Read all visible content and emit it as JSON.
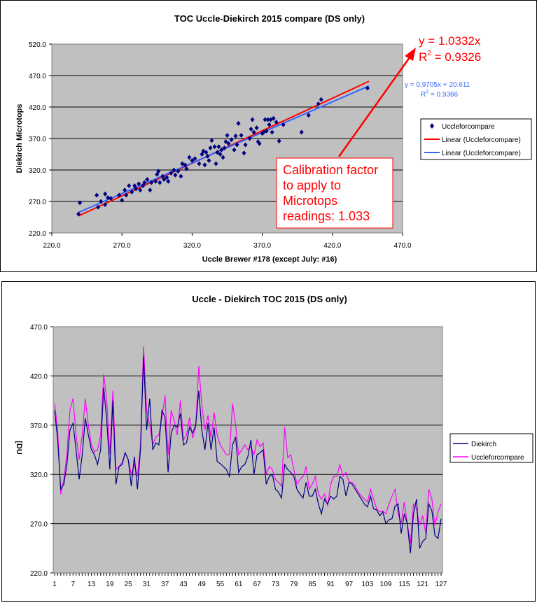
{
  "chart_data": [
    {
      "type": "scatter",
      "title": "TOC Uccle-Diekirch 2015 compare (DS only)",
      "xlabel": "Uccle Brewer #178 (except July: #16)",
      "ylabel": "Diekirch Microtops",
      "xlim": [
        220,
        470
      ],
      "ylim": [
        220,
        520
      ],
      "xticks": [
        "220.0",
        "270.0",
        "320.0",
        "370.0",
        "420.0",
        "470.0"
      ],
      "yticks": [
        "220.0",
        "270.0",
        "320.0",
        "370.0",
        "420.0",
        "470.0",
        "520.0"
      ],
      "grid": true,
      "legend": {
        "placement": "right",
        "entries": [
          "Uccleforcompare",
          "Linear (Uccleforcompare)",
          "Linear (Uccleforcompare)"
        ]
      },
      "series_name": "Uccleforcompare",
      "points": [
        [
          239,
          250
        ],
        [
          240,
          268
        ],
        [
          252,
          280
        ],
        [
          253,
          261
        ],
        [
          255,
          270
        ],
        [
          258,
          282
        ],
        [
          258,
          265
        ],
        [
          260,
          276
        ],
        [
          262,
          275
        ],
        [
          268,
          280
        ],
        [
          270,
          272
        ],
        [
          272,
          288
        ],
        [
          273,
          280
        ],
        [
          275,
          295
        ],
        [
          277,
          285
        ],
        [
          279,
          295
        ],
        [
          280,
          290
        ],
        [
          282,
          298
        ],
        [
          283,
          288
        ],
        [
          285,
          295
        ],
        [
          286,
          300
        ],
        [
          288,
          305
        ],
        [
          290,
          288
        ],
        [
          291,
          300
        ],
        [
          294,
          302
        ],
        [
          295,
          313
        ],
        [
          296,
          318
        ],
        [
          297,
          300
        ],
        [
          299,
          310
        ],
        [
          300,
          305
        ],
        [
          302,
          308
        ],
        [
          303,
          302
        ],
        [
          305,
          315
        ],
        [
          307,
          320
        ],
        [
          308,
          312
        ],
        [
          310,
          318
        ],
        [
          312,
          310
        ],
        [
          313,
          330
        ],
        [
          315,
          328
        ],
        [
          316,
          322
        ],
        [
          318,
          340
        ],
        [
          320,
          335
        ],
        [
          322,
          338
        ],
        [
          325,
          330
        ],
        [
          327,
          345
        ],
        [
          328,
          350
        ],
        [
          329,
          328
        ],
        [
          330,
          348
        ],
        [
          331,
          342
        ],
        [
          332,
          335
        ],
        [
          333,
          355
        ],
        [
          334,
          367
        ],
        [
          336,
          357
        ],
        [
          337,
          330
        ],
        [
          338,
          348
        ],
        [
          339,
          357
        ],
        [
          340,
          345
        ],
        [
          341,
          352
        ],
        [
          342,
          340
        ],
        [
          343,
          355
        ],
        [
          344,
          365
        ],
        [
          345,
          375
        ],
        [
          346,
          362
        ],
        [
          348,
          368
        ],
        [
          350,
          352
        ],
        [
          351,
          374
        ],
        [
          352,
          360
        ],
        [
          353,
          394
        ],
        [
          355,
          375
        ],
        [
          357,
          347
        ],
        [
          358,
          360
        ],
        [
          361,
          370
        ],
        [
          362,
          385
        ],
        [
          363,
          400
        ],
        [
          364,
          380
        ],
        [
          366,
          387
        ],
        [
          367,
          365
        ],
        [
          368,
          362
        ],
        [
          370,
          378
        ],
        [
          371,
          380
        ],
        [
          372,
          400
        ],
        [
          373,
          382
        ],
        [
          374,
          400
        ],
        [
          375,
          392
        ],
        [
          376,
          400
        ],
        [
          377,
          380
        ],
        [
          378,
          402
        ],
        [
          380,
          396
        ],
        [
          382,
          366
        ],
        [
          385,
          392
        ],
        [
          398,
          380
        ],
        [
          403,
          407
        ],
        [
          410,
          425
        ],
        [
          412,
          432
        ],
        [
          445,
          450
        ]
      ],
      "trendlines": [
        {
          "name": "Linear (Uccleforcompare)",
          "slope": 1.0332,
          "intercept": 0,
          "color": "#ff0000",
          "equation": "y = 1.0332x",
          "r2_label": "R",
          "r2_value": "2",
          "r2_rest": " = 0.9326",
          "xrange": [
            239,
            446
          ]
        },
        {
          "name": "Linear (Uccleforcompare)",
          "slope": 0.9705,
          "intercept": 20.611,
          "color": "#3366ff",
          "equation": "y = 0.9705x + 20.611",
          "r2_label": "R",
          "r2_value": "2",
          "r2_rest": " = 0.9366",
          "xrange": [
            239,
            446
          ]
        }
      ],
      "annotation": [
        "Calibration factor",
        "to apply to",
        "Microtops",
        "readings: 1.033"
      ]
    },
    {
      "type": "line",
      "title": "Uccle - Diekirch TOC 2015 (DS only)",
      "ylabel": "[DU",
      "ylim": [
        220,
        470
      ],
      "yticks": [
        "220.0",
        "270.0",
        "320.0",
        "370.0",
        "420.0",
        "470.0"
      ],
      "xticks": [
        "1",
        "7",
        "13",
        "19",
        "25",
        "31",
        "37",
        "43",
        "49",
        "55",
        "61",
        "67",
        "73",
        "79",
        "85",
        "91",
        "97",
        "103",
        "109",
        "115",
        "121",
        "127"
      ],
      "grid": true,
      "legend": {
        "placement": "right",
        "entries": [
          "Diekirch",
          "Uccleforcompare"
        ]
      },
      "series": [
        {
          "name": "Diekirch",
          "color": "#000080",
          "values": [
            385,
            355,
            305,
            310,
            330,
            365,
            372,
            345,
            315,
            340,
            377,
            360,
            345,
            340,
            330,
            345,
            408,
            375,
            325,
            395,
            310,
            328,
            330,
            342,
            335,
            308,
            338,
            305,
            345,
            440,
            365,
            397,
            345,
            352,
            350,
            385,
            378,
            322,
            362,
            370,
            368,
            382,
            350,
            352,
            368,
            362,
            370,
            405,
            365,
            345,
            372,
            345,
            368,
            333,
            331,
            328,
            325,
            318,
            350,
            358,
            322,
            328,
            330,
            338,
            355,
            320,
            340,
            342,
            345,
            310,
            318,
            320,
            305,
            302,
            296,
            330,
            325,
            322,
            318,
            305,
            300,
            296,
            312,
            298,
            298,
            305,
            290,
            280,
            295,
            290,
            298,
            295,
            298,
            318,
            315,
            298,
            312,
            310,
            305,
            300,
            295,
            290,
            287,
            298,
            285,
            284,
            278,
            282,
            270,
            274,
            275,
            288,
            290,
            260,
            280,
            270,
            240,
            280,
            295,
            245,
            252,
            255,
            290,
            283,
            258,
            255,
            275
          ]
        },
        {
          "name": "Uccleforcompare",
          "color": "#ff00ff",
          "values": [
            392,
            365,
            300,
            315,
            340,
            385,
            397,
            360,
            335,
            360,
            397,
            370,
            350,
            343,
            345,
            360,
            422,
            395,
            340,
            405,
            325,
            328,
            332,
            342,
            335,
            320,
            330,
            318,
            350,
            450,
            385,
            370,
            350,
            358,
            360,
            378,
            400,
            340,
            385,
            375,
            360,
            395,
            355,
            360,
            378,
            357,
            368,
            430,
            390,
            365,
            380,
            357,
            383,
            360,
            350,
            345,
            340,
            340,
            392,
            370,
            340,
            345,
            350,
            345,
            348,
            340,
            355,
            348,
            352,
            320,
            328,
            325,
            315,
            312,
            308,
            368,
            337,
            340,
            325,
            310,
            315,
            318,
            328,
            305,
            310,
            318,
            300,
            295,
            300,
            288,
            310,
            318,
            318,
            330,
            318,
            322,
            312,
            312,
            308,
            302,
            298,
            295,
            292,
            305,
            295,
            285,
            282,
            283,
            280,
            290,
            298,
            305,
            280,
            270,
            292,
            270,
            250,
            290,
            285,
            268,
            278,
            260,
            305,
            295,
            268,
            282,
            290
          ]
        }
      ]
    }
  ]
}
